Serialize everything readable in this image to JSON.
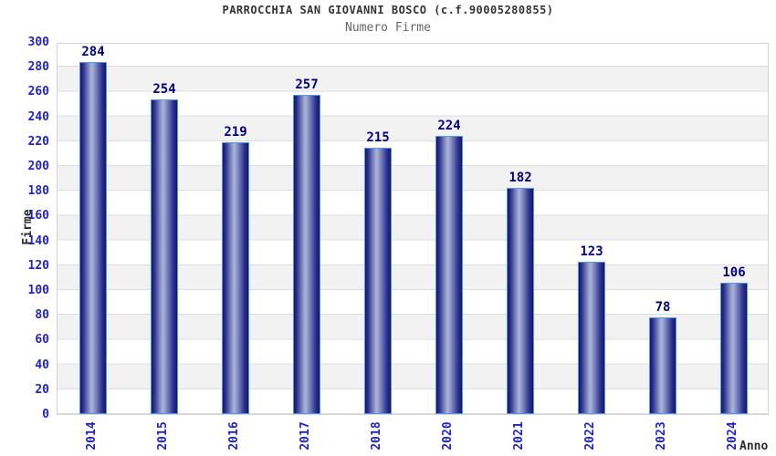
{
  "chart_data": {
    "type": "bar",
    "title": "PARROCCHIA SAN GIOVANNI BOSCO (c.f.90005280855)",
    "subtitle": "Numero Firme",
    "xlabel": "Anno",
    "ylabel": "Firme",
    "categories": [
      "2014",
      "2015",
      "2016",
      "2017",
      "2018",
      "2020",
      "2021",
      "2022",
      "2023",
      "2024"
    ],
    "values": [
      284,
      254,
      219,
      257,
      215,
      224,
      182,
      123,
      78,
      106
    ],
    "ylim": [
      0,
      300
    ],
    "ytick_step": 20,
    "grid": true,
    "legend": "none",
    "band_colors": [
      "#ffffff",
      "#f2f2f2"
    ],
    "colors": {
      "bar_dark": "#14146e",
      "bar_light": "#adb5da",
      "bar_border": "#4f9ae8",
      "tick_label": "#2222cc",
      "value_label": "#00008b",
      "grid_line": "#dddddd",
      "title": "#333333",
      "subtitle": "#666666",
      "axis_label": "#2b2b2b"
    }
  }
}
